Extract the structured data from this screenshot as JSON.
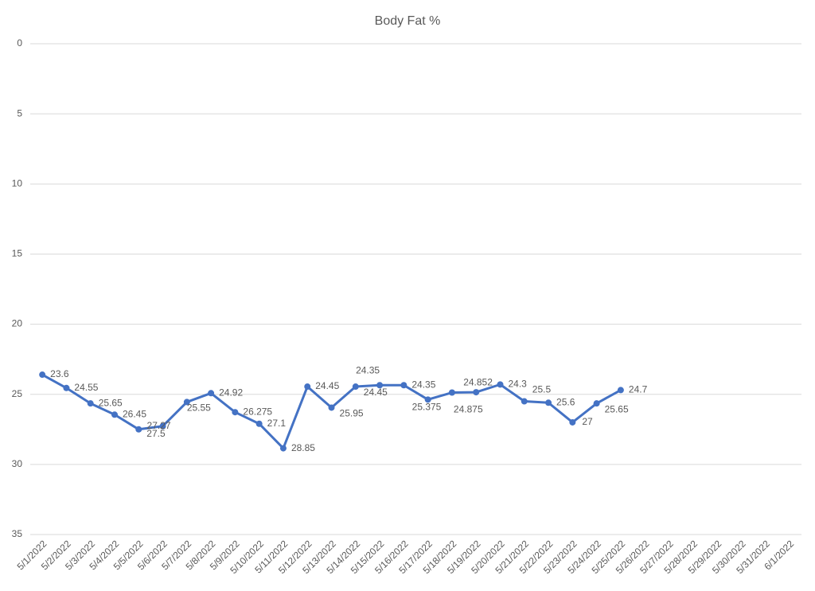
{
  "chart_data": {
    "type": "line",
    "title": "Body Fat %",
    "categories": [
      "5/1/2022",
      "5/2/2022",
      "5/3/2022",
      "5/4/2022",
      "5/5/2022",
      "5/6/2022",
      "5/7/2022",
      "5/8/2022",
      "5/9/2022",
      "5/10/2022",
      "5/11/2022",
      "5/12/2022",
      "5/13/2022",
      "5/14/2022",
      "5/15/2022",
      "5/16/2022",
      "5/17/2022",
      "5/18/2022",
      "5/19/2022",
      "5/20/2022",
      "5/21/2022",
      "5/22/2022",
      "5/23/2022",
      "5/24/2022",
      "5/25/2022",
      "5/26/2022",
      "5/27/2022",
      "5/28/2022",
      "5/29/2022",
      "5/30/2022",
      "5/31/2022",
      "6/1/2022"
    ],
    "series": [
      {
        "name": "Body Fat %",
        "color": "#4472c4",
        "values": [
          23.6,
          24.55,
          25.65,
          26.45,
          27.5,
          27.27,
          25.55,
          24.92,
          26.275,
          27.1,
          28.85,
          24.45,
          25.95,
          24.45,
          24.35,
          24.35,
          25.375,
          24.875,
          24.852,
          24.3,
          25.5,
          25.6,
          27,
          25.65,
          24.7,
          null,
          null,
          null,
          null,
          null,
          null,
          null
        ]
      }
    ],
    "ylim": [
      0,
      35
    ],
    "yticks": [
      0,
      5,
      10,
      15,
      20,
      25,
      30,
      35
    ],
    "y_inverted": true,
    "grid": true,
    "data_labels": true
  }
}
